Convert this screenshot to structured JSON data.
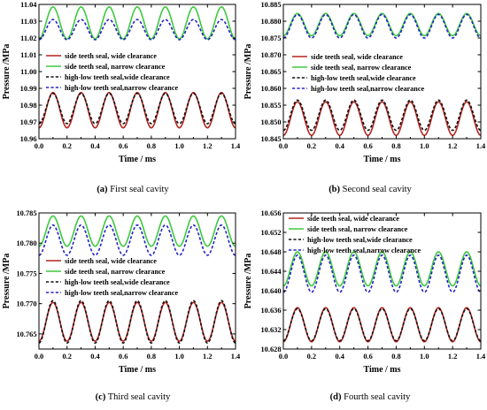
{
  "colors": {
    "side_wide": "#b5231e",
    "side_narrow": "#3ec93e",
    "hl_wide": "#111111",
    "hl_narrow": "#2323c7",
    "axis": "#000000"
  },
  "legend_labels": [
    "side teeth seal, wide clearance",
    "side teeth seal, narrow clearance",
    "high-low teeth seal,wide clearance",
    "high-low teeth seal,narrow clearance"
  ],
  "chart_data": [
    {
      "type": "line",
      "caption_letter": "(a)",
      "caption_text": " First seal cavity",
      "xlabel": "Time / ms",
      "ylabel": "Pressure /MPa",
      "xlim": [
        0.0,
        1.4
      ],
      "ylim": [
        10.96,
        11.04
      ],
      "xticks": [
        "0.0",
        "0.2",
        "0.4",
        "0.6",
        "0.8",
        "1.0",
        "1.2",
        "1.4"
      ],
      "yticks": [
        "10.96",
        "10.97",
        "10.98",
        "10.99",
        "11.00",
        "11.01",
        "11.02",
        "11.03",
        "11.04"
      ],
      "ytick_values": [
        10.96,
        10.97,
        10.98,
        10.99,
        11.0,
        11.01,
        11.02,
        11.03,
        11.04
      ],
      "legend_location": "middle-left",
      "period": 0.2,
      "series": [
        {
          "name": "side teeth seal, wide clearance",
          "mean": 10.977,
          "amplitude": 0.0105,
          "phase": 0.1,
          "dash": "solid"
        },
        {
          "name": "side teeth seal, narrow clearance",
          "mean": 11.029,
          "amplitude": 0.0095,
          "phase": 0.1,
          "dash": "solid"
        },
        {
          "name": "high-low teeth seal,wide clearance",
          "mean": 10.978,
          "amplitude": 0.009,
          "phase": 0.1,
          "dash": "dashed"
        },
        {
          "name": "high-low teeth seal,narrow clearance",
          "mean": 11.025,
          "amplitude": 0.006,
          "phase": 0.1,
          "dash": "dashed"
        }
      ]
    },
    {
      "type": "line",
      "caption_letter": "(b)",
      "caption_text": " Second seal cavity",
      "xlabel": "Time / ms",
      "ylabel": "Pressure /MPa",
      "xlim": [
        0.0,
        1.4
      ],
      "ylim": [
        10.845,
        10.885
      ],
      "xticks": [
        "0.0",
        "0.2",
        "0.4",
        "0.6",
        "0.8",
        "1.0",
        "1.2",
        "1.4"
      ],
      "yticks": [
        "10.845",
        "10.850",
        "10.855",
        "10.860",
        "10.865",
        "10.870",
        "10.875",
        "10.880",
        "10.885"
      ],
      "ytick_values": [
        10.845,
        10.85,
        10.855,
        10.86,
        10.865,
        10.87,
        10.875,
        10.88,
        10.885
      ],
      "legend_location": "middle-right",
      "period": 0.2,
      "series": [
        {
          "name": "side teeth seal, wide clearance",
          "mean": 10.851,
          "amplitude": 0.005,
          "phase": 0.1,
          "dash": "solid"
        },
        {
          "name": "side teeth seal, narrow clearance",
          "mean": 10.879,
          "amplitude": 0.0033,
          "phase": 0.1,
          "dash": "solid"
        },
        {
          "name": "high-low teeth seal,wide clearance",
          "mean": 10.852,
          "amplitude": 0.0045,
          "phase": 0.1,
          "dash": "dashed"
        },
        {
          "name": "high-low teeth seal,narrow clearance",
          "mean": 10.8785,
          "amplitude": 0.0035,
          "phase": 0.1,
          "dash": "dashed"
        }
      ]
    },
    {
      "type": "line",
      "caption_letter": "(c)",
      "caption_text": " Third seal cavity",
      "xlabel": "Time / ms",
      "ylabel": "Pressure /MPa",
      "xlim": [
        0.0,
        1.4
      ],
      "ylim": [
        10.7625,
        10.785
      ],
      "xticks": [
        "0.0",
        "0.2",
        "0.4",
        "0.6",
        "0.8",
        "1.0",
        "1.2",
        "1.4"
      ],
      "yticks": [
        "10.765",
        "10.770",
        "10.775",
        "10.780",
        "10.785"
      ],
      "ytick_values": [
        10.765,
        10.77,
        10.775,
        10.78,
        10.785
      ],
      "legend_location": "middle-left",
      "period": 0.2,
      "series": [
        {
          "name": "side teeth seal, wide clearance",
          "mean": 10.767,
          "amplitude": 0.0032,
          "phase": 0.1,
          "dash": "solid"
        },
        {
          "name": "side teeth seal, narrow clearance",
          "mean": 10.782,
          "amplitude": 0.0025,
          "phase": 0.1,
          "dash": "solid"
        },
        {
          "name": "high-low teeth seal,wide clearance",
          "mean": 10.767,
          "amplitude": 0.0035,
          "phase": 0.1,
          "dash": "dashed"
        },
        {
          "name": "high-low teeth seal,narrow clearance",
          "mean": 10.7805,
          "amplitude": 0.0025,
          "phase": 0.1,
          "dash": "dashed"
        }
      ]
    },
    {
      "type": "line",
      "caption_letter": "(d)",
      "caption_text": " Fourth seal cavity",
      "xlabel": "Time / ms",
      "ylabel": "Pressure /MPa",
      "xlim": [
        0.0,
        1.4
      ],
      "ylim": [
        10.628,
        10.656
      ],
      "xticks": [
        "0.0",
        "0.2",
        "0.4",
        "0.6",
        "0.8",
        "1.0",
        "1.2",
        "1.4"
      ],
      "yticks": [
        "10.628",
        "10.632",
        "10.636",
        "10.640",
        "10.644",
        "10.648",
        "10.652",
        "10.656"
      ],
      "ytick_values": [
        10.628,
        10.632,
        10.636,
        10.64,
        10.644,
        10.648,
        10.652,
        10.656
      ],
      "legend_location": "top-right",
      "period": 0.2,
      "series": [
        {
          "name": "side teeth seal, wide clearance",
          "mean": 10.633,
          "amplitude": 0.0035,
          "phase": 0.1,
          "dash": "solid"
        },
        {
          "name": "side teeth seal, narrow clearance",
          "mean": 10.6445,
          "amplitude": 0.0035,
          "phase": 0.1,
          "dash": "solid"
        },
        {
          "name": "high-low teeth seal,wide clearance",
          "mean": 10.633,
          "amplitude": 0.0033,
          "phase": 0.1,
          "dash": "dashed"
        },
        {
          "name": "high-low teeth seal,narrow clearance",
          "mean": 10.6435,
          "amplitude": 0.0038,
          "phase": 0.1,
          "dash": "dashed"
        }
      ]
    }
  ]
}
